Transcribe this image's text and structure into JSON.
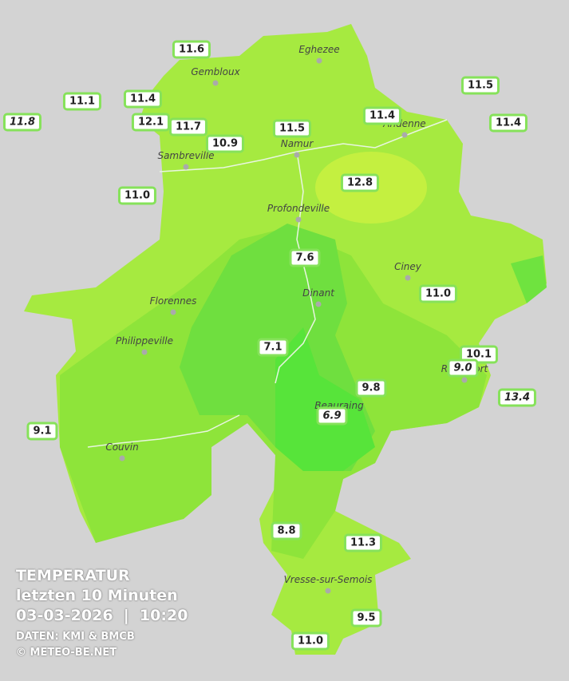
{
  "legend": {
    "title": "TEMPERATUR",
    "subtitle": "letzten 10 Minuten",
    "datetime": "03-03-2026  |  10:20",
    "source": "DATEN: KMI & BMCB",
    "copyright": "© METEO-BE.NET"
  },
  "cities": [
    "Eghezee",
    "Gembloux",
    "Andenne",
    "Namur",
    "Sambreville",
    "Profondeville",
    "Ciney",
    "Dinant",
    "Florennes",
    "Philippeville",
    "Rochefort",
    "Beauraing",
    "Couvin",
    "Vresse-sur-Semois"
  ],
  "stations": [
    "11.6",
    "11.1",
    "11.4",
    "11.8",
    "12.1",
    "11.7",
    "10.9",
    "11.5",
    "11.4",
    "11.5",
    "11.4",
    "11.0",
    "12.8",
    "7.6",
    "11.0",
    "7.1",
    "10.1",
    "9.0",
    "9.8",
    "13.4",
    "6.9",
    "9.1",
    "8.8",
    "11.3",
    "9.5",
    "11.0"
  ]
}
